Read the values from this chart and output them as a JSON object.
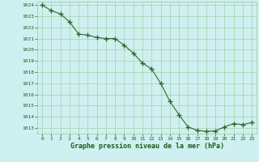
{
  "x": [
    0,
    1,
    2,
    3,
    4,
    5,
    6,
    7,
    8,
    9,
    10,
    11,
    12,
    13,
    14,
    15,
    16,
    17,
    18,
    19,
    20,
    21,
    22,
    23
  ],
  "y": [
    1024.0,
    1023.5,
    1023.2,
    1022.5,
    1021.4,
    1021.3,
    1021.1,
    1021.0,
    1021.0,
    1020.4,
    1019.7,
    1018.8,
    1018.3,
    1017.0,
    1015.4,
    1014.2,
    1013.1,
    1012.8,
    1012.7,
    1012.75,
    1013.1,
    1013.4,
    1013.3,
    1013.5
  ],
  "line_color": "#2d6a2d",
  "marker": "+",
  "marker_size": 4,
  "bg_color": "#cff0f0",
  "grid_color": "#98c898",
  "xlabel": "Graphe pression niveau de la mer (hPa)",
  "xlabel_color": "#1a5c1a",
  "tick_color": "#1a5c1a",
  "ylim_min": 1012.5,
  "ylim_max": 1024.3,
  "xlim_min": -0.5,
  "xlim_max": 23.5,
  "yticks": [
    1013,
    1014,
    1015,
    1016,
    1017,
    1018,
    1019,
    1020,
    1021,
    1022,
    1023,
    1024
  ],
  "xticks": [
    0,
    1,
    2,
    3,
    4,
    5,
    6,
    7,
    8,
    9,
    10,
    11,
    12,
    13,
    14,
    15,
    16,
    17,
    18,
    19,
    20,
    21,
    22,
    23
  ]
}
